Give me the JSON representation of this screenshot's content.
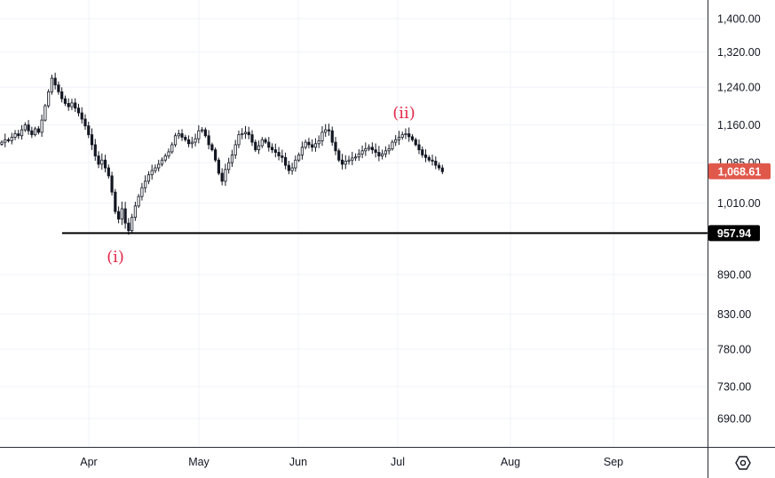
{
  "chart_data": {
    "type": "candlestick",
    "y_axis": {
      "scale": "log",
      "ticks": [
        {
          "value": 1400,
          "label": "1,400.00"
        },
        {
          "value": 1320,
          "label": "1,320.00"
        },
        {
          "value": 1240,
          "label": "1,240.00"
        },
        {
          "value": 1160,
          "label": "1,160.00"
        },
        {
          "value": 1085,
          "label": "1,085.00"
        },
        {
          "value": 1010,
          "label": "1,010.00"
        },
        {
          "value": 890,
          "label": "890.00"
        },
        {
          "value": 830,
          "label": "830.00"
        },
        {
          "value": 780,
          "label": "780.00"
        },
        {
          "value": 730,
          "label": "730.00"
        },
        {
          "value": 690,
          "label": "690.00"
        }
      ],
      "range": [
        655,
        1460
      ]
    },
    "x_axis": {
      "ticks": [
        "Apr",
        "May",
        "Jun",
        "Jul",
        "Aug",
        "Sep"
      ]
    },
    "grid": true,
    "current_price": {
      "value": 1068.61,
      "label": "1,068.61",
      "color": "#e0584a"
    },
    "support_level": {
      "value": 957.94,
      "label": "957.94",
      "color": "#000000"
    },
    "wave_labels": [
      {
        "text": "(i)",
        "color": "#e5294b"
      },
      {
        "text": "(ii)",
        "color": "#e5294b"
      }
    ],
    "candle_color": "#131722",
    "closes": [
      1125,
      1130,
      1128,
      1135,
      1142,
      1138,
      1150,
      1160,
      1148,
      1140,
      1152,
      1145,
      1170,
      1200,
      1230,
      1260,
      1245,
      1230,
      1215,
      1205,
      1198,
      1206,
      1195,
      1185,
      1172,
      1158,
      1140,
      1120,
      1098,
      1082,
      1090,
      1075,
      1060,
      1030,
      995,
      982,
      1000,
      975,
      962,
      985,
      1005,
      1022,
      1038,
      1050,
      1062,
      1070,
      1075,
      1082,
      1090,
      1098,
      1106,
      1120,
      1138,
      1142,
      1135,
      1130,
      1122,
      1125,
      1132,
      1148,
      1150,
      1138,
      1120,
      1110,
      1090,
      1065,
      1050,
      1072,
      1085,
      1100,
      1120,
      1140,
      1142,
      1145,
      1140,
      1125,
      1110,
      1118,
      1130,
      1125,
      1115,
      1110,
      1105,
      1098,
      1095,
      1080,
      1070,
      1075,
      1090,
      1100,
      1115,
      1125,
      1120,
      1115,
      1122,
      1128,
      1145,
      1150,
      1148,
      1125,
      1108,
      1090,
      1082,
      1088,
      1090,
      1094,
      1096,
      1102,
      1108,
      1112,
      1115,
      1110,
      1105,
      1098,
      1102,
      1108,
      1112,
      1125,
      1130,
      1135,
      1140,
      1142,
      1136,
      1130,
      1120,
      1110,
      1100,
      1095,
      1090,
      1088,
      1080,
      1075,
      1068
    ]
  },
  "settings": {
    "icon": "settings-icon"
  }
}
